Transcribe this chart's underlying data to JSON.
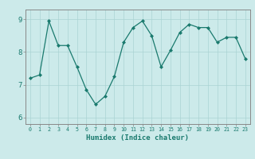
{
  "x": [
    0,
    1,
    2,
    3,
    4,
    5,
    6,
    7,
    8,
    9,
    10,
    11,
    12,
    13,
    14,
    15,
    16,
    17,
    18,
    19,
    20,
    21,
    22,
    23
  ],
  "y": [
    7.2,
    7.3,
    8.95,
    8.2,
    8.2,
    7.55,
    6.85,
    6.4,
    6.65,
    7.25,
    8.3,
    8.75,
    8.95,
    8.5,
    7.55,
    8.05,
    8.6,
    8.85,
    8.75,
    8.75,
    8.3,
    8.45,
    8.45,
    7.8
  ],
  "xlabel": "Humidex (Indice chaleur)",
  "ylim": [
    5.8,
    9.3
  ],
  "xlim": [
    -0.5,
    23.5
  ],
  "yticks": [
    6,
    7,
    8,
    9
  ],
  "xticks": [
    0,
    1,
    2,
    3,
    4,
    5,
    6,
    7,
    8,
    9,
    10,
    11,
    12,
    13,
    14,
    15,
    16,
    17,
    18,
    19,
    20,
    21,
    22,
    23
  ],
  "line_color": "#1a7a6e",
  "marker_color": "#1a7a6e",
  "bg_color": "#cceaea",
  "grid_color": "#aad4d4",
  "axis_label_color": "#1a7a6e",
  "tick_label_color": "#1a7a6e",
  "border_color": "#888888"
}
